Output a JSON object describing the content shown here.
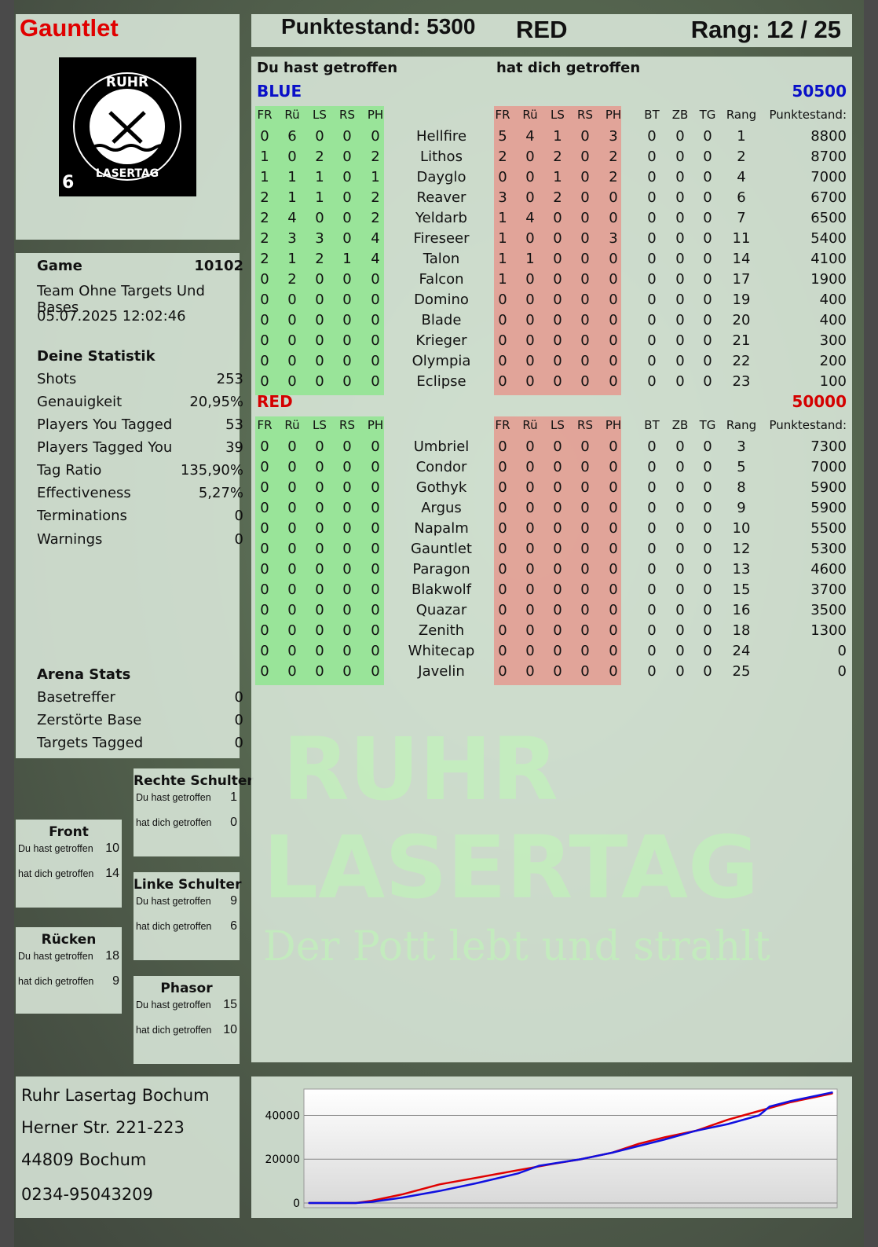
{
  "player": {
    "name": "Gauntlet",
    "score_label": "Punktestand: 5300",
    "team": "RED",
    "rank_label": "Rang: 12 / 25"
  },
  "logo": {
    "top_text": "RUHR",
    "bottom_text": "LASERTAG",
    "number": "6"
  },
  "watermark": {
    "line1": "RUHR",
    "line2": "LASERTAG",
    "slogan": "Der Pott lebt und strahlt"
  },
  "game": {
    "label": "Game",
    "id": "10102",
    "mode": "Team Ohne Targets Und Bases",
    "datetime": "05.07.2025 12:02:46"
  },
  "stats": {
    "title": "Deine Statistik",
    "items": [
      {
        "label": "Shots",
        "value": "253"
      },
      {
        "label": "Genauigkeit",
        "value": "20,95%"
      },
      {
        "label": "Players You Tagged",
        "value": "53"
      },
      {
        "label": "Players Tagged You",
        "value": "39"
      },
      {
        "label": "Tag Ratio",
        "value": "135,90%"
      },
      {
        "label": "Effectiveness",
        "value": "5,27%"
      },
      {
        "label": "Terminations",
        "value": "0"
      },
      {
        "label": "Warnings",
        "value": "0"
      }
    ]
  },
  "arena": {
    "title": "Arena Stats",
    "items": [
      {
        "label": "Basetreffer",
        "value": "0"
      },
      {
        "label": "Zerstörte Base",
        "value": "0"
      },
      {
        "label": "Targets Tagged",
        "value": "0"
      }
    ]
  },
  "zones": [
    {
      "title": "Rechte Schulter",
      "you_hit_label": "Du hast getroffen",
      "you_hit": "1",
      "hit_you_label": "hat dich getroffen",
      "hit_you": "0"
    },
    {
      "title": "Front",
      "you_hit_label": "Du hast getroffen",
      "you_hit": "10",
      "hit_you_label": "hat dich getroffen",
      "hit_you": "14"
    },
    {
      "title": "Linke Schulter",
      "you_hit_label": "Du hast getroffen",
      "you_hit": "9",
      "hit_you_label": "hat dich getroffen",
      "hit_you": "6"
    },
    {
      "title": "Rücken",
      "you_hit_label": "Du hast getroffen",
      "you_hit": "18",
      "hit_you_label": "hat dich getroffen",
      "hit_you": "9"
    },
    {
      "title": "Phasor",
      "you_hit_label": "Du hast getroffen",
      "you_hit": "15",
      "hit_you_label": "hat dich getroffen",
      "hit_you": "10"
    }
  ],
  "address": {
    "line1": "Ruhr Lasertag Bochum",
    "line2": "Herner Str. 221-223",
    "line3": "44809 Bochum",
    "phone": "0234-95043209"
  },
  "table": {
    "you_hit_title": "Du hast getroffen",
    "hit_you_title": "hat dich getroffen",
    "zone_headers": [
      "FR",
      "Rü",
      "LS",
      "RS",
      "PH"
    ],
    "extra_headers": [
      "BT",
      "ZB",
      "TG",
      "Rang",
      "Punktestand:"
    ],
    "teams": [
      {
        "name": "BLUE",
        "color": "#0a10c8",
        "score": "50500",
        "players": [
          [
            "Hellfire",
            [
              0,
              6,
              0,
              0,
              0
            ],
            [
              5,
              4,
              1,
              0,
              3
            ],
            [
              0,
              0,
              0
            ],
            1,
            8800
          ],
          [
            "Lithos",
            [
              1,
              0,
              2,
              0,
              2
            ],
            [
              2,
              0,
              2,
              0,
              2
            ],
            [
              0,
              0,
              0
            ],
            2,
            8700
          ],
          [
            "Dayglo",
            [
              1,
              1,
              1,
              0,
              1
            ],
            [
              0,
              0,
              1,
              0,
              2
            ],
            [
              0,
              0,
              0
            ],
            4,
            7000
          ],
          [
            "Reaver",
            [
              2,
              1,
              1,
              0,
              2
            ],
            [
              3,
              0,
              2,
              0,
              0
            ],
            [
              0,
              0,
              0
            ],
            6,
            6700
          ],
          [
            "Yeldarb",
            [
              2,
              4,
              0,
              0,
              2
            ],
            [
              1,
              4,
              0,
              0,
              0
            ],
            [
              0,
              0,
              0
            ],
            7,
            6500
          ],
          [
            "Fireseer",
            [
              2,
              3,
              3,
              0,
              4
            ],
            [
              1,
              0,
              0,
              0,
              3
            ],
            [
              0,
              0,
              0
            ],
            11,
            5400
          ],
          [
            "Talon",
            [
              2,
              1,
              2,
              1,
              4
            ],
            [
              1,
              1,
              0,
              0,
              0
            ],
            [
              0,
              0,
              0
            ],
            14,
            4100
          ],
          [
            "Falcon",
            [
              0,
              2,
              0,
              0,
              0
            ],
            [
              1,
              0,
              0,
              0,
              0
            ],
            [
              0,
              0,
              0
            ],
            17,
            1900
          ],
          [
            "Domino",
            [
              0,
              0,
              0,
              0,
              0
            ],
            [
              0,
              0,
              0,
              0,
              0
            ],
            [
              0,
              0,
              0
            ],
            19,
            400
          ],
          [
            "Blade",
            [
              0,
              0,
              0,
              0,
              0
            ],
            [
              0,
              0,
              0,
              0,
              0
            ],
            [
              0,
              0,
              0
            ],
            20,
            400
          ],
          [
            "Krieger",
            [
              0,
              0,
              0,
              0,
              0
            ],
            [
              0,
              0,
              0,
              0,
              0
            ],
            [
              0,
              0,
              0
            ],
            21,
            300
          ],
          [
            "Olympia",
            [
              0,
              0,
              0,
              0,
              0
            ],
            [
              0,
              0,
              0,
              0,
              0
            ],
            [
              0,
              0,
              0
            ],
            22,
            200
          ],
          [
            "Eclipse",
            [
              0,
              0,
              0,
              0,
              0
            ],
            [
              0,
              0,
              0,
              0,
              0
            ],
            [
              0,
              0,
              0
            ],
            23,
            100
          ]
        ]
      },
      {
        "name": "RED",
        "color": "#d40000",
        "score": "50000",
        "players": [
          [
            "Umbriel",
            [
              0,
              0,
              0,
              0,
              0
            ],
            [
              0,
              0,
              0,
              0,
              0
            ],
            [
              0,
              0,
              0
            ],
            3,
            7300
          ],
          [
            "Condor",
            [
              0,
              0,
              0,
              0,
              0
            ],
            [
              0,
              0,
              0,
              0,
              0
            ],
            [
              0,
              0,
              0
            ],
            5,
            7000
          ],
          [
            "Gothyk",
            [
              0,
              0,
              0,
              0,
              0
            ],
            [
              0,
              0,
              0,
              0,
              0
            ],
            [
              0,
              0,
              0
            ],
            8,
            5900
          ],
          [
            "Argus",
            [
              0,
              0,
              0,
              0,
              0
            ],
            [
              0,
              0,
              0,
              0,
              0
            ],
            [
              0,
              0,
              0
            ],
            9,
            5900
          ],
          [
            "Napalm",
            [
              0,
              0,
              0,
              0,
              0
            ],
            [
              0,
              0,
              0,
              0,
              0
            ],
            [
              0,
              0,
              0
            ],
            10,
            5500
          ],
          [
            "Gauntlet",
            [
              0,
              0,
              0,
              0,
              0
            ],
            [
              0,
              0,
              0,
              0,
              0
            ],
            [
              0,
              0,
              0
            ],
            12,
            5300
          ],
          [
            "Paragon",
            [
              0,
              0,
              0,
              0,
              0
            ],
            [
              0,
              0,
              0,
              0,
              0
            ],
            [
              0,
              0,
              0
            ],
            13,
            4600
          ],
          [
            "Blakwolf",
            [
              0,
              0,
              0,
              0,
              0
            ],
            [
              0,
              0,
              0,
              0,
              0
            ],
            [
              0,
              0,
              0
            ],
            15,
            3700
          ],
          [
            "Quazar",
            [
              0,
              0,
              0,
              0,
              0
            ],
            [
              0,
              0,
              0,
              0,
              0
            ],
            [
              0,
              0,
              0
            ],
            16,
            3500
          ],
          [
            "Zenith",
            [
              0,
              0,
              0,
              0,
              0
            ],
            [
              0,
              0,
              0,
              0,
              0
            ],
            [
              0,
              0,
              0
            ],
            18,
            1300
          ],
          [
            "Whitecap",
            [
              0,
              0,
              0,
              0,
              0
            ],
            [
              0,
              0,
              0,
              0,
              0
            ],
            [
              0,
              0,
              0
            ],
            24,
            0
          ],
          [
            "Javelin",
            [
              0,
              0,
              0,
              0,
              0
            ],
            [
              0,
              0,
              0,
              0,
              0
            ],
            [
              0,
              0,
              0
            ],
            25,
            0
          ]
        ]
      }
    ]
  },
  "chart_data": {
    "type": "line",
    "title": "",
    "xlabel": "",
    "ylabel": "",
    "ylim": [
      0,
      52000
    ],
    "yticks": [
      0,
      20000,
      40000
    ],
    "grid": true,
    "series": [
      {
        "color": "#e00000",
        "x": [
          0,
          9,
          12,
          18,
          25,
          32,
          40,
          47,
          52,
          58,
          63,
          68,
          74,
          80,
          86,
          92,
          100
        ],
        "y": [
          0,
          0,
          1000,
          4000,
          8500,
          11500,
          15000,
          18000,
          20000,
          23000,
          27000,
          30000,
          33000,
          38000,
          42000,
          46000,
          50000
        ]
      },
      {
        "color": "#1010e0",
        "x": [
          0,
          9,
          12,
          18,
          25,
          32,
          40,
          44,
          52,
          58,
          63,
          68,
          74,
          80,
          86,
          88,
          92,
          100
        ],
        "y": [
          0,
          0,
          500,
          2500,
          5500,
          9000,
          13500,
          17000,
          20000,
          23000,
          26000,
          29000,
          33000,
          36000,
          40000,
          44000,
          46500,
          50500
        ]
      }
    ]
  }
}
